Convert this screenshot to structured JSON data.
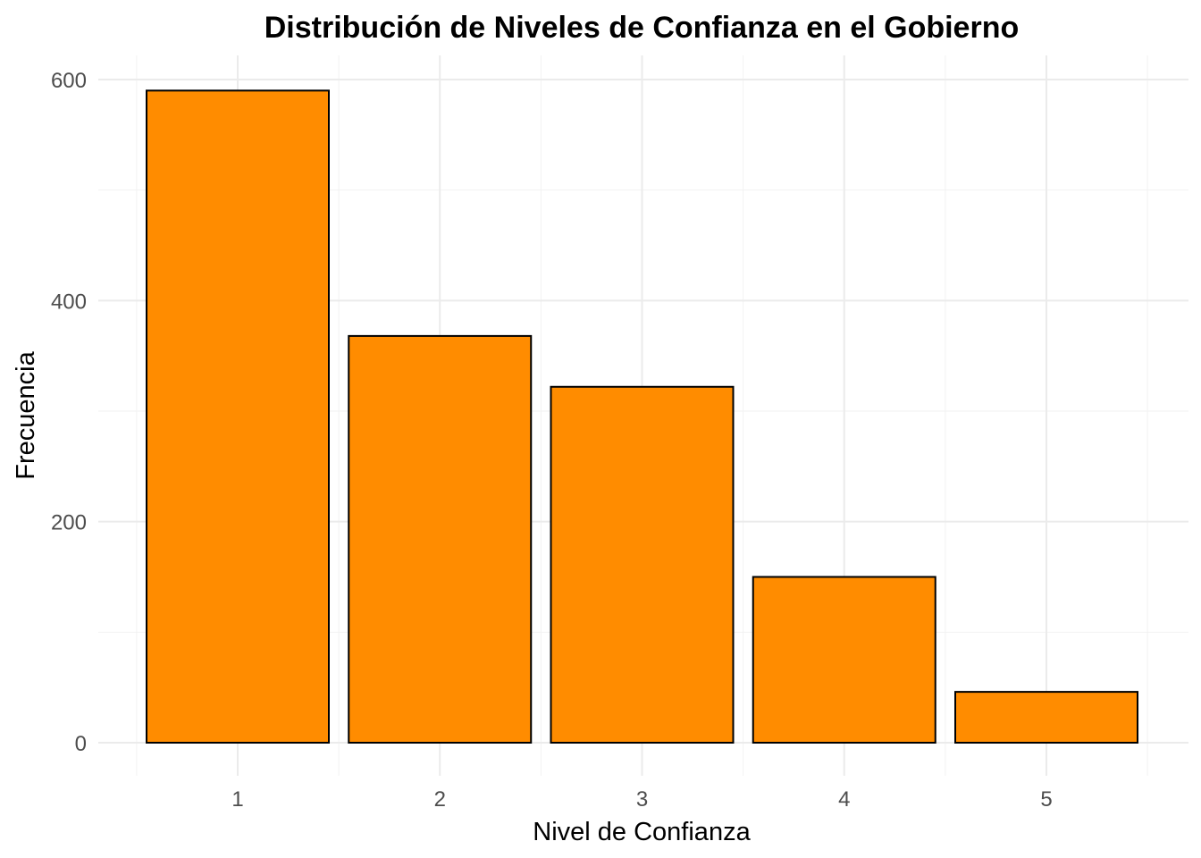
{
  "chart_data": {
    "type": "bar",
    "title": "Distribución de Niveles de Confianza en el Gobierno",
    "xlabel": "Nivel de Confianza",
    "ylabel": "Frecuencia",
    "categories": [
      "1",
      "2",
      "3",
      "4",
      "5"
    ],
    "values": [
      590,
      368,
      322,
      150,
      46
    ],
    "ylim": [
      0,
      620
    ],
    "yticks": [
      0,
      200,
      400,
      600
    ],
    "grid": true,
    "legend": "none",
    "colors": {
      "bar_fill": "#FF8C00",
      "bar_outline": "#000000",
      "background": "#FFFFFF",
      "grid": "#EBEBEB"
    }
  }
}
